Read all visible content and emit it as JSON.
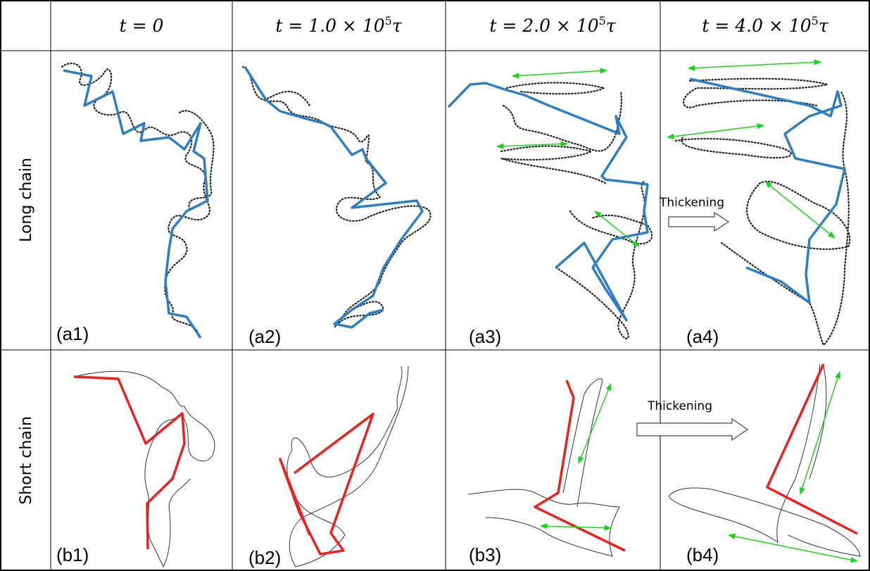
{
  "header": {
    "columns": [
      {
        "prefix": "t = 0"
      },
      {
        "prefix": "t = 1.0 × 10",
        "exp": "5",
        "suffix": "τ"
      },
      {
        "prefix": "t = 2.0 × 10",
        "exp": "5",
        "suffix": "τ"
      },
      {
        "prefix": "t = 4.0 × 10",
        "exp": "5",
        "suffix": "τ"
      }
    ]
  },
  "rows": [
    {
      "label": "Long chain",
      "panels": [
        "(a1)",
        "(a2)",
        "(a3)",
        "(a4)"
      ],
      "annotation": "Thickening"
    },
    {
      "label": "Short chain",
      "panels": [
        "(b1)",
        "(b2)",
        "(b3)",
        "(b4)"
      ],
      "annotation": "Thickening"
    }
  ]
}
